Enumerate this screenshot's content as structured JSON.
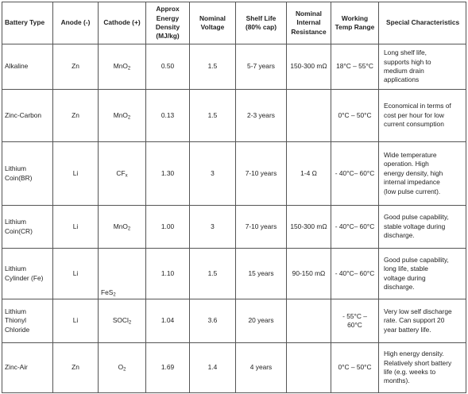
{
  "table": {
    "headers": {
      "battery_type": "Battery Type",
      "anode": "Anode (-)",
      "cathode": "Cathode (+)",
      "energy_density": [
        "Approx",
        "Energy",
        "Density",
        "(MJ/kg)"
      ],
      "nominal_voltage": [
        "Nominal",
        "Voltage"
      ],
      "shelf_life": [
        "Shelf Life",
        "(80% cap)"
      ],
      "internal_resistance": [
        "Nominal",
        "Internal",
        "Resistance"
      ],
      "temp_range": [
        "Working",
        "Temp Range"
      ],
      "special": "Special Characteristics"
    },
    "rows": [
      {
        "type": [
          "Alkaline"
        ],
        "anode": "Zn",
        "cathode": {
          "base": "MnO",
          "sub": "2"
        },
        "energy_density": "0.50",
        "voltage": "1.5",
        "shelf_life": "5-7 years",
        "resistance": "150-300 mΩ",
        "temp_range": [
          "18°C – 55°C"
        ],
        "special": [
          "Long shelf life,",
          "supports high to",
          "medium drain",
          "applications"
        ]
      },
      {
        "type": [
          "Zinc-Carbon"
        ],
        "anode": "Zn",
        "cathode": {
          "base": "MnO",
          "sub": "2"
        },
        "energy_density": "0.13",
        "voltage": "1.5",
        "shelf_life": "2-3 years",
        "resistance": "",
        "temp_range": [
          "0°C – 50°C"
        ],
        "special": [
          "Economical in terms of",
          "cost per hour for low",
          "current consumption"
        ]
      },
      {
        "type": [
          "Lithium",
          "Coin(BR)"
        ],
        "anode": "Li",
        "cathode": {
          "base": "CF",
          "sub": "x"
        },
        "energy_density": "1.30",
        "voltage": "3",
        "shelf_life": "7-10 years",
        "resistance": "1-4 Ω",
        "temp_range": [
          "- 40°C– 60°C"
        ],
        "special": [
          "Wide temperature",
          "operation.  High",
          "energy density, high",
          "internal impedance",
          "(low pulse current)."
        ]
      },
      {
        "type": [
          "Lithium",
          "Coin(CR)"
        ],
        "anode": "Li",
        "cathode": {
          "base": "MnO",
          "sub": "2"
        },
        "energy_density": "1.00",
        "voltage": "3",
        "shelf_life": "7-10 years",
        "resistance": "150-300 mΩ",
        "temp_range": [
          "- 40°C– 60°C"
        ],
        "special": [
          "Good pulse capability,",
          "stable voltage during",
          "discharge."
        ]
      },
      {
        "type": [
          "Lithium",
          "Cylinder (Fe)"
        ],
        "anode": "Li",
        "cathode": {
          "base": "FeS",
          "sub": "2"
        },
        "energy_density": "1.10",
        "voltage": "1.5",
        "shelf_life": "15 years",
        "resistance": "90-150 mΩ",
        "temp_range": [
          "- 40°C– 60°C"
        ],
        "special": [
          "Good pulse capability,",
          "long life,  stable",
          "voltage during",
          "discharge."
        ]
      },
      {
        "type": [
          "Lithium",
          "Thionyl",
          "Chloride"
        ],
        "anode": "Li",
        "cathode": {
          "base": "SOCl",
          "sub": "2"
        },
        "energy_density": "1.04",
        "voltage": "3.6",
        "shelf_life": "20 years",
        "resistance": "",
        "temp_range": [
          "- 55°C –",
          "60°C"
        ],
        "special": [
          "Very low self discharge",
          "rate.  Can support 20",
          "year battery life."
        ]
      },
      {
        "type": [
          "Zinc-Air"
        ],
        "anode": "Zn",
        "cathode": {
          "base": "O",
          "sub": "2"
        },
        "energy_density": "1.69",
        "voltage": "1.4",
        "shelf_life": "4 years",
        "resistance": "",
        "temp_range": [
          "0°C – 50°C"
        ],
        "special": [
          "High energy density.",
          "Relatively short battery",
          "life (e.g. weeks to",
          "months)."
        ]
      }
    ]
  }
}
